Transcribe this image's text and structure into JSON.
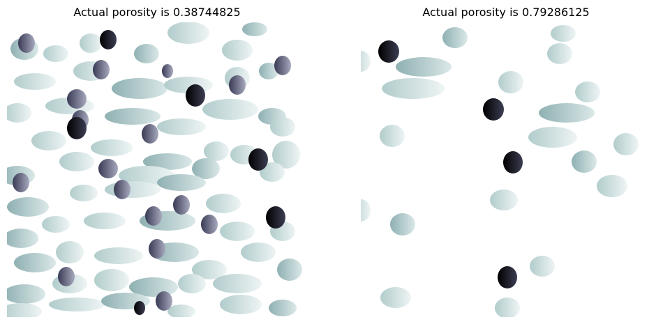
{
  "panels": [
    {
      "title": "Actual porosity is 0.38744825"
    },
    {
      "title": "Actual porosity is 0.79286125"
    }
  ],
  "colormap": {
    "light": "#d7e6e6",
    "mid": "#a8c4c4",
    "dark": "#4e4f6a",
    "black": "#0b0b12"
  }
}
